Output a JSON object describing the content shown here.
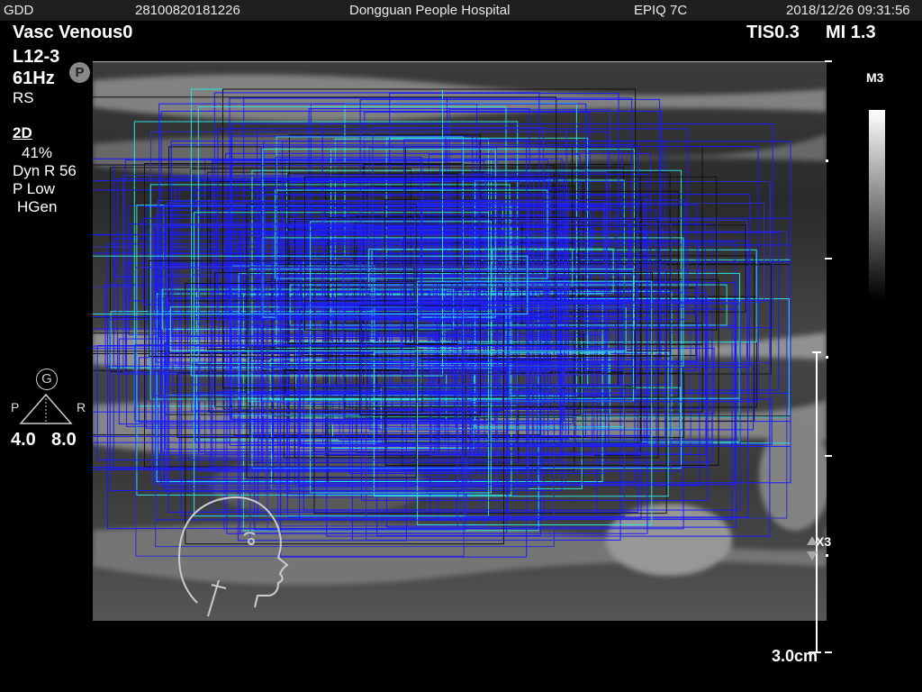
{
  "header": {
    "institution_code": "GDD",
    "exam_id": "28100820181226",
    "hospital": "Dongguan People Hospital",
    "device": "EPIQ 7C",
    "datetime": "2018/12/26 09:31:56"
  },
  "preset": "Vasc Venous0",
  "thermal": {
    "tis": "TIS0.3",
    "mi": "MI 1.3"
  },
  "probe": {
    "model": "L12-3",
    "frame_rate": "61Hz",
    "mode": "RS",
    "p_badge": "P"
  },
  "imaging_2d": {
    "label": "2D",
    "gain": "41%",
    "dyn_range": "Dyn R 56",
    "power": "P Low",
    "freq": "HGen"
  },
  "gray_map": "M3",
  "orientation": {
    "badge": "G",
    "left": "P",
    "right": "R",
    "left_value": "4.0",
    "right_value": "8.0"
  },
  "depth_scale": {
    "zoom_label": "X3",
    "depth": "3.0cm"
  },
  "colors": {
    "annot_blue": "#1a1aff",
    "annot_cyan": "#2ee0e0",
    "annot_dark": "#111111",
    "header_bg": "#1f1f1f"
  }
}
